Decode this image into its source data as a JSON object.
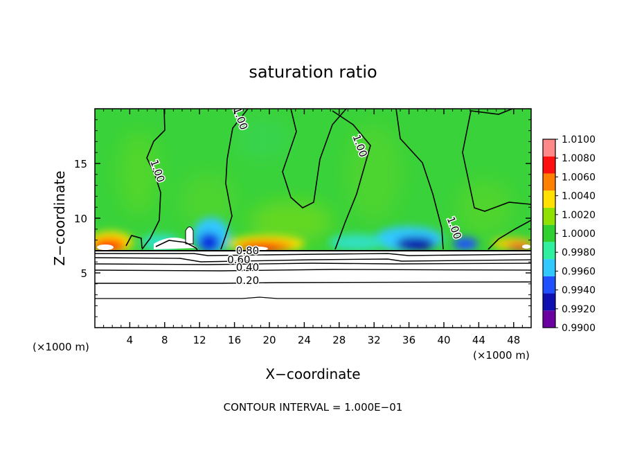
{
  "chart_data": {
    "type": "heatmap",
    "title": "saturation ratio",
    "xlabel": "X−coordinate",
    "ylabel": "Z−coordinate",
    "x_unit": "(×1000 m)",
    "y_unit": "(×1000 m)",
    "xlim": [
      0,
      50
    ],
    "ylim": [
      0,
      20
    ],
    "xticks": [
      4,
      8,
      12,
      16,
      20,
      24,
      28,
      32,
      36,
      40,
      44,
      48
    ],
    "yticks": [
      5,
      10,
      15
    ],
    "footer": "CONTOUR INTERVAL = 1.000E−01",
    "colorbar": {
      "levels": [
        0.99,
        0.992,
        0.994,
        0.996,
        0.998,
        1.0,
        1.002,
        1.004,
        1.006,
        1.008,
        1.01
      ],
      "labels": [
        "0.9900",
        "0.9920",
        "0.9940",
        "0.9960",
        "0.9980",
        "1.0000",
        "1.0020",
        "1.0040",
        "1.0060",
        "1.0080",
        "1.0100"
      ],
      "colors": [
        "#6a00a0",
        "#1010b0",
        "#2050ff",
        "#30c8ff",
        "#30f0a0",
        "#30d030",
        "#90e000",
        "#ffe000",
        "#ff8000",
        "#ff1010",
        "#ff8888"
      ]
    },
    "contour_labels": [
      {
        "text": "1.00",
        "x": 16.3,
        "z": 19.0
      },
      {
        "text": "1.00",
        "x": 30.0,
        "z": 16.5
      },
      {
        "text": "1.00",
        "x": 6.8,
        "z": 14.2
      },
      {
        "text": "1.00",
        "x": 40.8,
        "z": 9.0
      },
      {
        "text": "0.80",
        "x": 17.5,
        "z": 6.7
      },
      {
        "text": "0.60",
        "x": 16.5,
        "z": 5.9
      },
      {
        "text": "0.40",
        "x": 17.5,
        "z": 5.2
      },
      {
        "text": "0.20",
        "x": 17.5,
        "z": 4.0
      }
    ]
  }
}
